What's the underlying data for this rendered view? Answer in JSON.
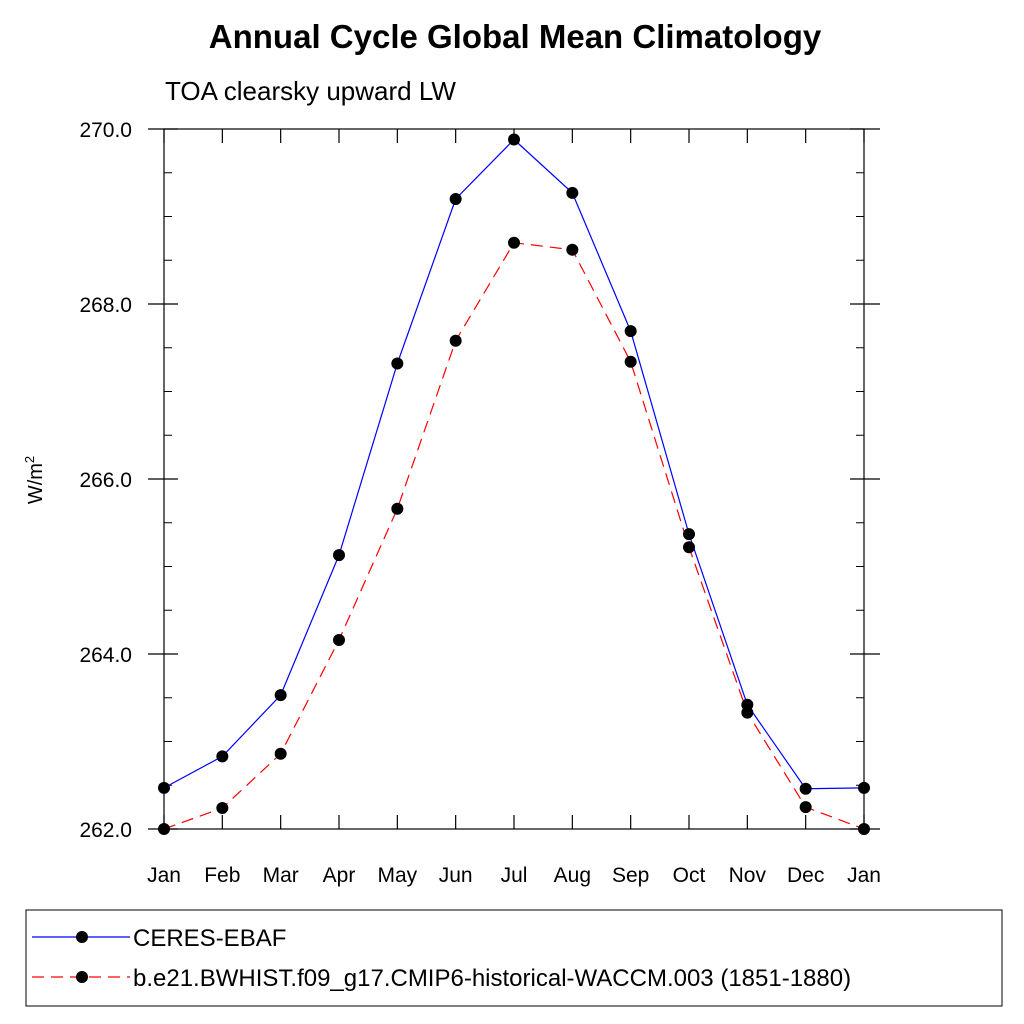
{
  "chart_data": {
    "type": "line",
    "title": "Annual Cycle Global Mean Climatology",
    "subtitle": "TOA clearsky upward LW",
    "ylabel": "W/m",
    "ylabel_superscript": "2",
    "xlabel": "",
    "categories": [
      "Jan",
      "Feb",
      "Mar",
      "Apr",
      "May",
      "Jun",
      "Jul",
      "Aug",
      "Sep",
      "Oct",
      "Nov",
      "Dec",
      "Jan"
    ],
    "ylim": [
      262.0,
      270.0
    ],
    "yticks": [
      "262.0",
      "264.0",
      "266.0",
      "268.0",
      "270.0"
    ],
    "ytick_values": [
      262.0,
      264.0,
      266.0,
      268.0,
      270.0
    ],
    "grid": false,
    "legend_position": "bottom",
    "series": [
      {
        "name": "CERES-EBAF",
        "color": "#0000ff",
        "line_style": "solid",
        "marker": "filled-circle",
        "values": [
          262.47,
          262.83,
          263.53,
          265.13,
          267.32,
          269.2,
          269.88,
          269.27,
          267.69,
          265.37,
          263.42,
          262.46,
          262.47
        ]
      },
      {
        "name": "b.e21.BWHIST.f09_g17.CMIP6-historical-WACCM.003 (1851-1880)",
        "color": "#ff0000",
        "line_style": "dashed",
        "marker": "filled-circle",
        "values": [
          262.0,
          262.24,
          262.86,
          264.16,
          265.66,
          267.58,
          268.7,
          268.62,
          267.34,
          265.22,
          263.33,
          262.25,
          262.0
        ]
      }
    ]
  }
}
